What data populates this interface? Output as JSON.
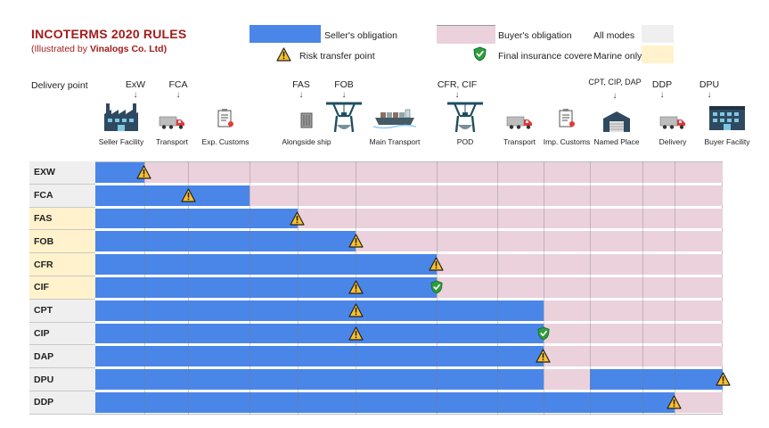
{
  "header": {
    "title": "INCOTERMS 2020 RULES",
    "subtitle_prefix": "(Illustrated by ",
    "subtitle_brand": "Vinalogs Co. Ltd)"
  },
  "legend": {
    "seller": "Seller's obligation",
    "buyer": "Buyer's obligation",
    "risk": "Risk transfer point",
    "insurance": "Final insurance coverec",
    "all_modes": "All modes",
    "marine_only": "Marine only"
  },
  "colors": {
    "seller": "#4a86e8",
    "buyer": "#ead1dc",
    "all_modes": "#efefef",
    "marine_only": "#fff2cc",
    "title": "#a31c1c"
  },
  "delivery_point_label": "Delivery point",
  "delivery_ticks": [
    {
      "label": "ExW"
    },
    {
      "label": "FCA"
    },
    {
      "label": "FAS"
    },
    {
      "label": "FOB"
    },
    {
      "label": "CFR, CIF"
    },
    {
      "label": "CPT, CIP, DAP"
    },
    {
      "label": "DDP"
    },
    {
      "label": "DPU"
    }
  ],
  "stages": [
    {
      "label": "Seller Facility",
      "icon": "factory-icon"
    },
    {
      "label": "Transport",
      "icon": "truck-icon"
    },
    {
      "label": "Exp. Customs",
      "icon": "clipboard-icon"
    },
    {
      "label": "Alongside ship",
      "icon": "container-icon"
    },
    {
      "label": "",
      "icon": "crane-icon"
    },
    {
      "label": "Main Transport",
      "icon": "ship-icon"
    },
    {
      "label": "POD",
      "icon": "crane-icon"
    },
    {
      "label": "Transport",
      "icon": "truck-icon"
    },
    {
      "label": "Imp. Customs",
      "icon": "clipboard-icon"
    },
    {
      "label": "Named Place",
      "icon": "warehouse-icon"
    },
    {
      "label": "Delivery",
      "icon": "truck-icon"
    },
    {
      "label": "Buyer Facility",
      "icon": "building-icon"
    }
  ],
  "rules": [
    {
      "term": "EXW",
      "mode": "all",
      "seller_end": 0.078,
      "risk": 0.078,
      "buyer_gap": null,
      "insurance": null
    },
    {
      "term": "FCA",
      "mode": "all",
      "seller_end": 0.246,
      "risk": 0.148,
      "buyer_gap": null,
      "insurance": null
    },
    {
      "term": "FAS",
      "mode": "marine",
      "seller_end": 0.322,
      "risk": 0.322,
      "buyer_gap": null,
      "insurance": null
    },
    {
      "term": "FOB",
      "mode": "marine",
      "seller_end": 0.415,
      "risk": 0.415,
      "buyer_gap": null,
      "insurance": null
    },
    {
      "term": "CFR",
      "mode": "marine",
      "seller_end": 0.544,
      "risk": 0.544,
      "buyer_gap": null,
      "insurance": null
    },
    {
      "term": "CIF",
      "mode": "marine",
      "seller_end": 0.544,
      "risk": 0.415,
      "buyer_gap": null,
      "insurance": 0.544
    },
    {
      "term": "CPT",
      "mode": "all",
      "seller_end": 0.714,
      "risk": 0.415,
      "buyer_gap": null,
      "insurance": null
    },
    {
      "term": "CIP",
      "mode": "all",
      "seller_end": 0.714,
      "risk": 0.415,
      "buyer_gap": null,
      "insurance": 0.714
    },
    {
      "term": "DAP",
      "mode": "all",
      "seller_end": 0.714,
      "risk": 0.714,
      "buyer_gap": null,
      "insurance": null
    },
    {
      "term": "DPU",
      "mode": "all",
      "seller_end": 1.0,
      "risk": 1.0,
      "buyer_gap": [
        0.714,
        0.789
      ],
      "insurance": null
    },
    {
      "term": "DDP",
      "mode": "all",
      "seller_end": 0.923,
      "risk": 0.923,
      "buyer_gap": null,
      "insurance": null
    }
  ]
}
